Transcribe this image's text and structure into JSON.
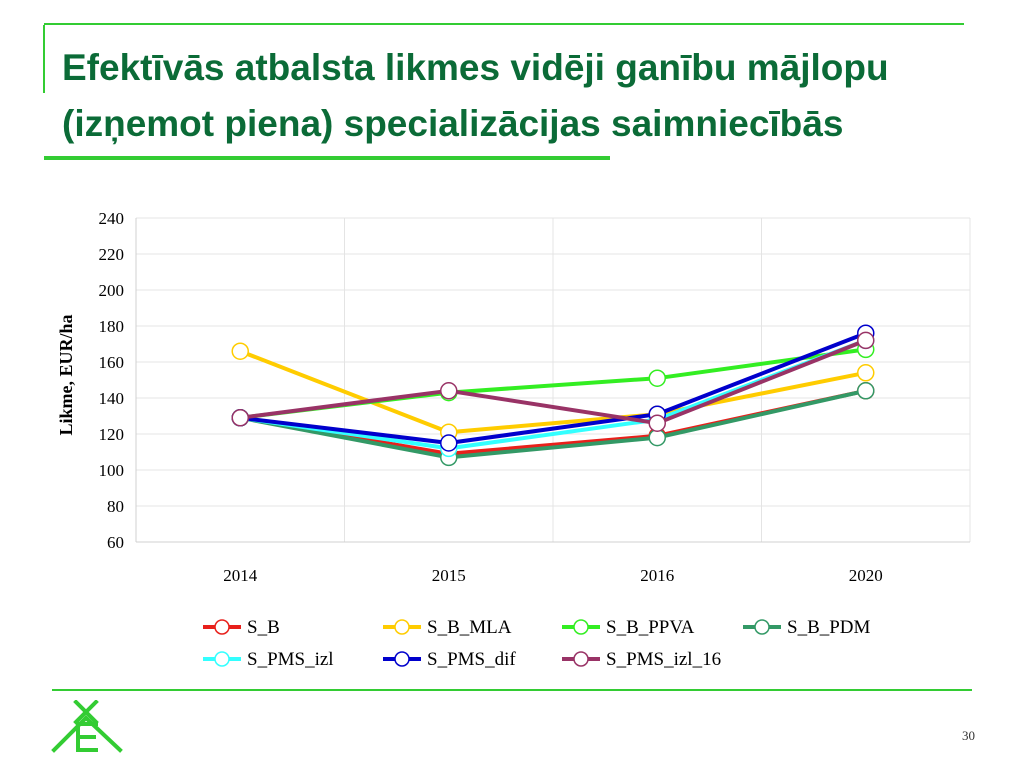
{
  "slide": {
    "title_line1": "Efektīvās atbalsta likmes vidēji ganību mājlopu",
    "title_line2": "(izņemot piena) specializācijas saimniecībās",
    "page_number": "30"
  },
  "colors": {
    "accent_green": "#33cc33",
    "title_color": "#0b6b37"
  },
  "chart_data": {
    "type": "line",
    "categories": [
      "2014",
      "2015",
      "2016",
      "2020"
    ],
    "ylabel": "Likme, EUR/ha",
    "xlabel": "",
    "ylim": [
      60,
      240
    ],
    "yticks": [
      60,
      80,
      100,
      120,
      140,
      160,
      180,
      200,
      220,
      240
    ],
    "grid": true,
    "legend_position": "bottom",
    "series": [
      {
        "name": "S_B",
        "color": "#e8201b",
        "values": [
          129,
          109,
          119,
          144
        ]
      },
      {
        "name": "S_B_MLA",
        "color": "#ffcc00",
        "values": [
          166,
          121,
          131,
          154
        ]
      },
      {
        "name": "S_B_PPVA",
        "color": "#33ee22",
        "values": [
          129,
          143,
          151,
          167
        ]
      },
      {
        "name": "S_B_PDM",
        "color": "#339966",
        "values": [
          129,
          107,
          118,
          144
        ]
      },
      {
        "name": "S_PMS_izl",
        "color": "#33ffff",
        "values": [
          129,
          112,
          128,
          172
        ]
      },
      {
        "name": "S_PMS_dif",
        "color": "#0000cc",
        "values": [
          129,
          115,
          131,
          176
        ]
      },
      {
        "name": "S_PMS_izl_16",
        "color": "#993366",
        "values": [
          129,
          144,
          126,
          172
        ]
      }
    ]
  }
}
